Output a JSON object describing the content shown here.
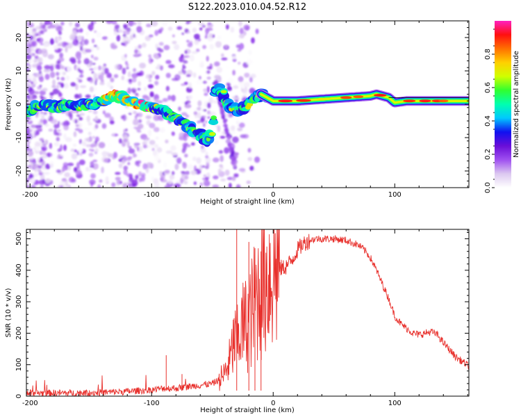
{
  "title": "S122.2023.010.04.52.R12",
  "chart_data": [
    {
      "type": "heatmap",
      "xlabel": "Height of straight line (km)",
      "ylabel": "Frequency (Hz)",
      "xlim": [
        -203,
        161
      ],
      "ylim": [
        -25,
        25
      ],
      "x_ticks": [
        -200,
        -100,
        0,
        100
      ],
      "y_ticks": [
        -20,
        -10,
        0,
        10,
        20
      ],
      "colorbar": {
        "label": "Normalized spectral amplitude",
        "range": [
          0,
          1
        ],
        "ticks": [
          "0.0",
          "0.2",
          "0.4",
          "0.6",
          "0.8"
        ],
        "colormap": [
          "#ffffff",
          "#dcc8f0",
          "#9f50f0",
          "#6a0ed8",
          "#1010f0",
          "#00c8ff",
          "#00ffb0",
          "#30ff30",
          "#d0ff00",
          "#ffd000",
          "#ff7000",
          "#ff1010",
          "#ff20c0"
        ]
      },
      "trace": {
        "description": "frequency peak vs height",
        "x": [
          -200,
          -190,
          -180,
          -170,
          -160,
          -150,
          -140,
          -130,
          -120,
          -110,
          -100,
          -90,
          -80,
          -70,
          -60,
          -55,
          -50,
          -48,
          -45,
          -42,
          -40,
          -35,
          -30,
          -25,
          -20,
          -15,
          -10,
          -5,
          0,
          10,
          20,
          40,
          60,
          80,
          85,
          90,
          95,
          100,
          110,
          120,
          130,
          140,
          150,
          160
        ],
        "y": [
          -2,
          0,
          -1,
          0,
          -1,
          0,
          1,
          3,
          1,
          0,
          -1,
          -2,
          -4,
          -7,
          -9,
          -11,
          -8,
          4,
          5,
          4,
          2,
          -1,
          -2,
          -1,
          0,
          2,
          3,
          2,
          1,
          1,
          1,
          1.5,
          2,
          2.5,
          3,
          2.5,
          2,
          0.5,
          1,
          1,
          1,
          1,
          1,
          1
        ]
      }
    },
    {
      "type": "line",
      "xlabel": "Height of straight line (km)",
      "ylabel": "SNR (10 * v/v)",
      "xlim": [
        -203,
        161
      ],
      "ylim": [
        0,
        530
      ],
      "x_ticks": [
        -200,
        -100,
        0,
        100
      ],
      "y_ticks": [
        0,
        100,
        200,
        300,
        400,
        500
      ],
      "color": "#e8302c",
      "series": [
        {
          "x": [
            -203,
            -180,
            -160,
            -140,
            -120,
            -100,
            -90,
            -80,
            -70,
            -60,
            -50,
            -45,
            -40,
            -38,
            -35,
            -32,
            -30,
            -28,
            -25,
            -22,
            -20,
            -18,
            -15,
            -12,
            -10,
            -5,
            0,
            5,
            10,
            15,
            20,
            25,
            30,
            35,
            40,
            50,
            60,
            70,
            75,
            80,
            85,
            90,
            95,
            100,
            105,
            110,
            115,
            120,
            125,
            130,
            135,
            140,
            150,
            161
          ],
          "y": [
            10,
            10,
            10,
            12,
            15,
            20,
            25,
            25,
            30,
            35,
            40,
            50,
            70,
            90,
            120,
            180,
            160,
            200,
            220,
            230,
            240,
            260,
            300,
            330,
            350,
            380,
            400,
            405,
            410,
            430,
            465,
            485,
            495,
            500,
            500,
            500,
            495,
            480,
            465,
            440,
            400,
            355,
            310,
            255,
            230,
            215,
            200,
            195,
            200,
            205,
            195,
            170,
            125,
            95
          ]
        }
      ],
      "spikes": [
        {
          "x": -88,
          "y": 130
        },
        {
          "x": -75,
          "y": 70
        },
        {
          "x": -30,
          "y": 530
        },
        {
          "x": -20,
          "y": 490
        },
        {
          "x": -15,
          "y": 470
        },
        {
          "x": -10,
          "y": 460
        }
      ]
    }
  ]
}
